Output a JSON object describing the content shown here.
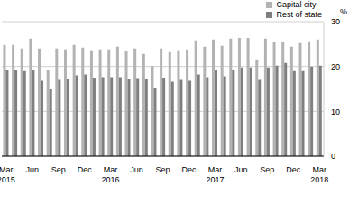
{
  "chart_data": {
    "type": "bar",
    "y_label": "%",
    "categories": [
      "Mar 2015",
      null,
      null,
      "Jun",
      null,
      null,
      "Sep",
      null,
      null,
      "Dec",
      null,
      null,
      "Mar 2016",
      null,
      null,
      "Jun",
      null,
      null,
      "Sep",
      null,
      null,
      "Dec",
      null,
      null,
      "Mar 2017",
      null,
      null,
      "Jun",
      null,
      null,
      "Sep",
      null,
      null,
      "Dec",
      null,
      null,
      "Mar 2018"
    ],
    "series": [
      {
        "name": "Capital city",
        "color": "#b3b3b3",
        "values": [
          24.8,
          24.8,
          24,
          26.2,
          24,
          19.3,
          24,
          23.8,
          24.8,
          24.2,
          23.6,
          23.8,
          23.8,
          24.4,
          23.5,
          24,
          22.8,
          20.1,
          24,
          23.2,
          23.6,
          23.8,
          25.8,
          24.4,
          26,
          24.6,
          26.2,
          26.4,
          26.4,
          21.6,
          26.2,
          25.4,
          25.4,
          24.4,
          25.2,
          25.6,
          26
        ]
      },
      {
        "name": "Rest of state",
        "color": "#7f7f7f",
        "values": [
          19.3,
          19.2,
          19,
          19.2,
          16.8,
          15,
          17,
          17.2,
          18,
          18.2,
          17.5,
          17.6,
          17.6,
          17.6,
          17.2,
          17.4,
          17.2,
          15.3,
          17.5,
          16.6,
          17,
          16.8,
          18.2,
          17.6,
          19.2,
          17.8,
          19.2,
          19.8,
          19.8,
          17,
          19.8,
          20.2,
          20.8,
          19,
          19,
          20,
          20.2
        ]
      }
    ],
    "ylim": [
      0,
      30
    ],
    "yticks": [
      0,
      10,
      20,
      30
    ],
    "grid": true,
    "legend": "top-right"
  }
}
